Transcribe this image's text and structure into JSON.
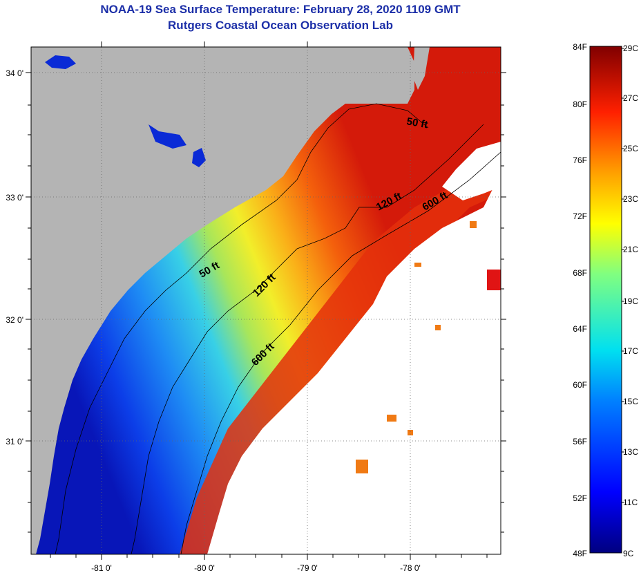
{
  "header": {
    "title": "NOAA-19 Sea Surface Temperature:  February 28, 2020 1109 GMT",
    "subtitle": "Rutgers Coastal Ocean Observation Lab"
  },
  "map": {
    "lat_ticks": [
      "34 0'",
      "33 0'",
      "32 0'",
      "31 0'"
    ],
    "lon_ticks": [
      "-81 0'",
      "-80 0'",
      "-79 0'",
      "-78 0'"
    ],
    "depth_labels": [
      "50 ft",
      "50 ft",
      "120 ft",
      "120 ft",
      "600 ft",
      "600 ft"
    ],
    "colors": {
      "land": "#b4b4b4",
      "cloud": "#ffffff",
      "cold": "#0a2ad6",
      "warm": "#e6280a",
      "contour": "#000000"
    }
  },
  "colorbar": {
    "fahrenheit_ticks": [
      "84F",
      "80F",
      "76F",
      "72F",
      "68F",
      "64F",
      "60F",
      "56F",
      "52F",
      "48F"
    ],
    "celsius_ticks": [
      "29C",
      "27C",
      "25C",
      "23C",
      "21C",
      "19C",
      "17C",
      "15C",
      "13C",
      "11C",
      "9C"
    ]
  }
}
